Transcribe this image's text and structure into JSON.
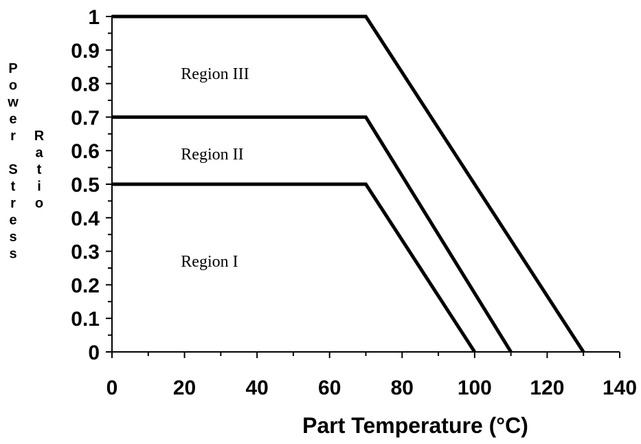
{
  "chart_data": {
    "type": "line",
    "title": "",
    "xlabel": "Part Temperature (°C)",
    "ylabel_words": [
      "Power Stress",
      "Ratio"
    ],
    "xlim": [
      0,
      140
    ],
    "ylim": [
      0,
      1
    ],
    "x_ticks": [
      "0",
      "20",
      "40",
      "60",
      "80",
      "100",
      "120",
      "140"
    ],
    "y_ticks": [
      "0",
      "0.1",
      "0.2",
      "0.3",
      "0.4",
      "0.5",
      "0.6",
      "0.7",
      "0.8",
      "0.9",
      "1"
    ],
    "x_tick_values": [
      0,
      20,
      40,
      60,
      80,
      100,
      120,
      140
    ],
    "y_tick_values": [
      0,
      0.1,
      0.2,
      0.3,
      0.4,
      0.5,
      0.6,
      0.7,
      0.8,
      0.9,
      1
    ],
    "grid": false,
    "line_color": "#000000",
    "series": [
      {
        "points": [
          [
            0,
            0.5
          ],
          [
            70,
            0.5
          ],
          [
            100,
            0
          ]
        ]
      },
      {
        "points": [
          [
            0,
            0.7
          ],
          [
            70,
            0.7
          ],
          [
            110,
            0
          ]
        ]
      },
      {
        "points": [
          [
            0,
            1.0
          ],
          [
            70,
            1.0
          ],
          [
            130,
            0
          ]
        ]
      }
    ],
    "annotations": [
      {
        "text": "Region III",
        "x": 19,
        "y": 0.83
      },
      {
        "text": "Region II",
        "x": 19,
        "y": 0.59
      },
      {
        "text": "Region I",
        "x": 19,
        "y": 0.27
      }
    ]
  }
}
